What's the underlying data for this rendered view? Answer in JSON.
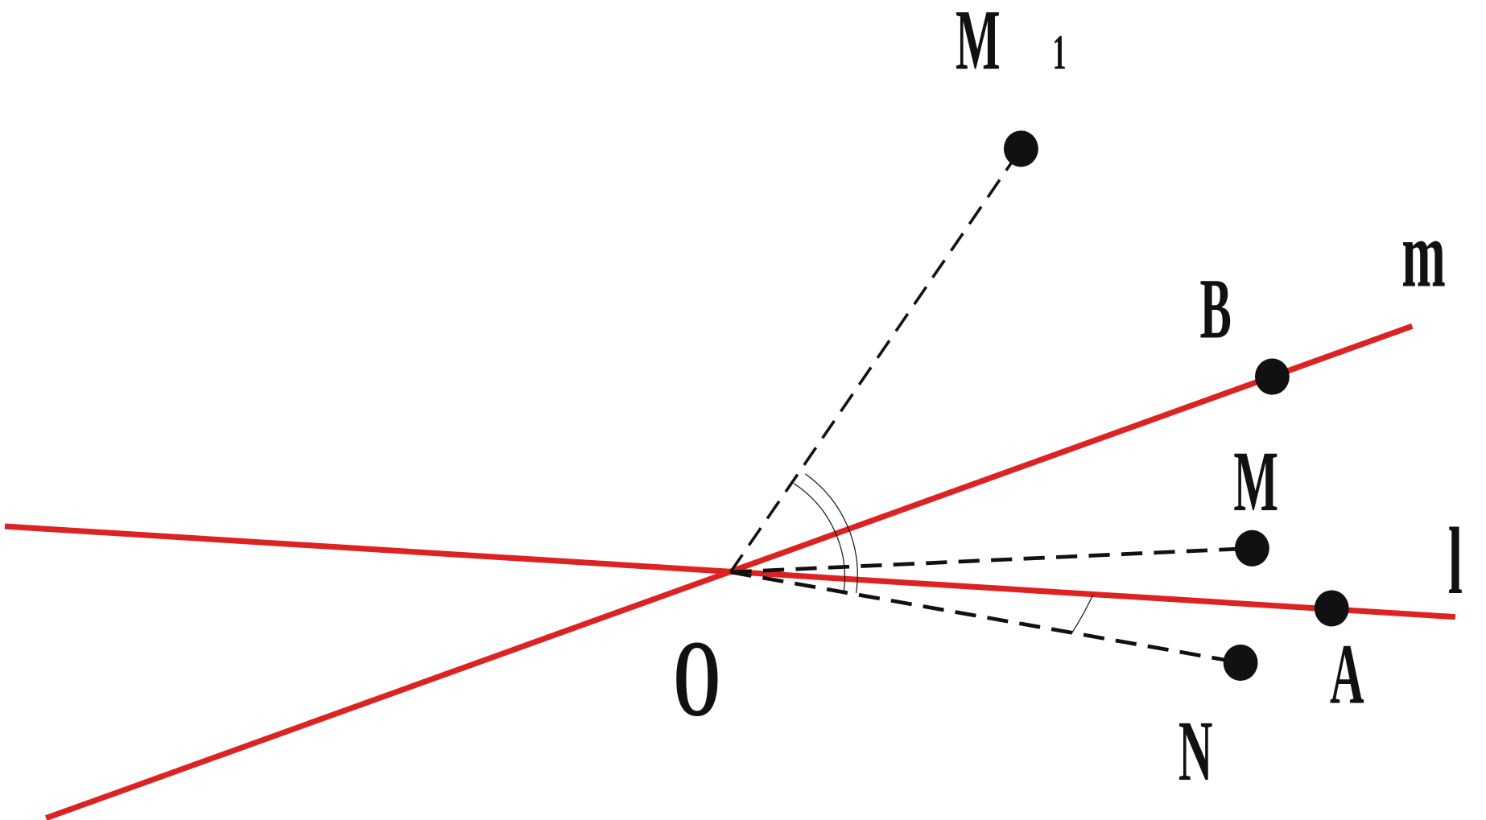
{
  "labels": {
    "M1_main": "M",
    "M1_sub": "1",
    "m": "m",
    "B": "B",
    "M": "M",
    "l": "l",
    "O": "O",
    "A": "A",
    "N": "N"
  },
  "colors": {
    "lines": "#dd2222",
    "dashed": "#111111",
    "points": "#111111"
  }
}
